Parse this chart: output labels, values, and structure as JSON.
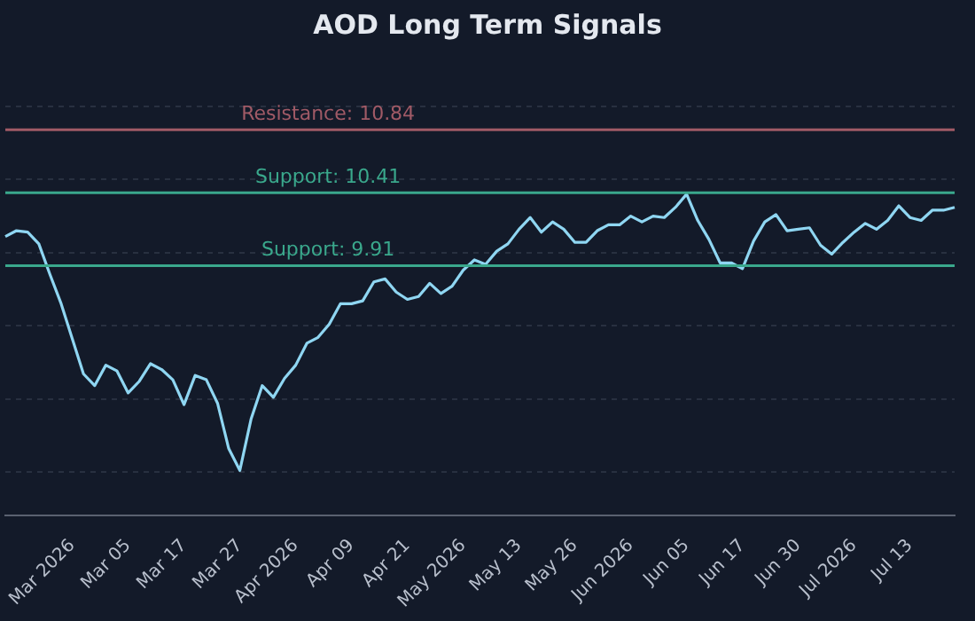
{
  "chart_data": {
    "type": "line",
    "title": "AOD Long Term Signals",
    "categories": [
      null,
      null,
      null,
      null,
      null,
      null,
      "Mar 2026",
      null,
      null,
      null,
      null,
      "Mar 05",
      null,
      null,
      null,
      null,
      "Mar 17",
      null,
      null,
      null,
      null,
      "Mar 27",
      null,
      null,
      null,
      null,
      "Apr 2026",
      null,
      null,
      null,
      null,
      "Apr 09",
      null,
      null,
      null,
      null,
      "Apr 21",
      null,
      null,
      null,
      null,
      "May 2026",
      null,
      null,
      null,
      null,
      "May 13",
      null,
      null,
      null,
      null,
      "May 26",
      null,
      null,
      null,
      null,
      "Jun 2026",
      null,
      null,
      null,
      null,
      "Jun 05",
      null,
      null,
      null,
      null,
      "Jun 17",
      null,
      null,
      null,
      null,
      "Jun 30",
      null,
      null,
      null,
      null,
      "Jul 2026",
      null,
      null,
      null,
      null,
      "Jul 13",
      null,
      null,
      null,
      null
    ],
    "series": [
      {
        "color": "#8fd6f2",
        "values": [
          10.11,
          10.15,
          10.14,
          10.06,
          9.85,
          9.65,
          9.41,
          9.17,
          9.09,
          9.23,
          9.19,
          9.04,
          9.12,
          9.24,
          9.2,
          9.13,
          8.96,
          9.16,
          9.13,
          8.97,
          8.66,
          8.51,
          8.86,
          9.09,
          9.01,
          9.14,
          9.23,
          9.38,
          9.42,
          9.51,
          9.65,
          9.65,
          9.67,
          9.8,
          9.82,
          9.73,
          9.68,
          9.7,
          9.79,
          9.72,
          9.77,
          9.88,
          9.95,
          9.92,
          10.01,
          10.06,
          10.16,
          10.24,
          10.14,
          10.21,
          10.16,
          10.07,
          10.07,
          10.15,
          10.19,
          10.19,
          10.25,
          10.21,
          10.25,
          10.24,
          10.31,
          10.4,
          10.22,
          10.09,
          9.93,
          9.93,
          9.89,
          10.08,
          10.21,
          10.26,
          10.15,
          10.16,
          10.17,
          10.05,
          9.99,
          10.07,
          10.14,
          10.2,
          10.16,
          10.22,
          10.32,
          10.24,
          10.22,
          10.29,
          10.29,
          10.31
        ]
      }
    ],
    "ylim": [
      8.2,
      11.0
    ],
    "yticks": [
      {
        "value": 8.5,
        "label": null
      },
      {
        "value": 9.0,
        "label": null
      },
      {
        "value": 9.5,
        "label": null
      },
      {
        "value": 10.0,
        "label": null
      },
      {
        "value": 10.5,
        "label": null
      },
      {
        "value": 11.0,
        "label": null
      }
    ],
    "tick_labels": "x",
    "grid": "y",
    "legend": false,
    "marker": "none",
    "line_style": "solid",
    "ref_lines": [
      {
        "axis": "y",
        "value": 10.84,
        "label": "Resistance: 10.84",
        "color": "#a05a66"
      },
      {
        "axis": "y",
        "value": 10.41,
        "label": "Support: 10.41",
        "color": "#3aa88c"
      },
      {
        "axis": "y",
        "value": 9.91,
        "label": "Support: 9.91",
        "color": "#3aa88c"
      }
    ]
  }
}
